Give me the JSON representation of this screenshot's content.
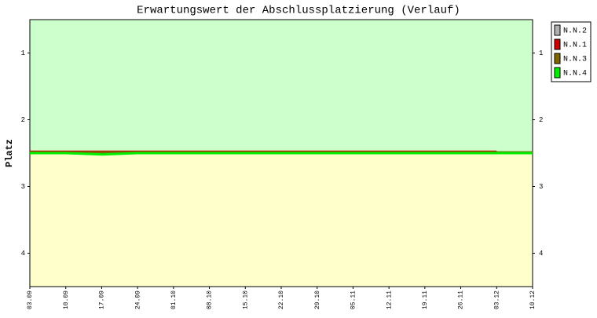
{
  "chart_data": {
    "type": "line",
    "title": "Erwartungswert der Abschlussplatzierung (Verlauf)",
    "y_label": "Platz",
    "categories": [
      "03.09",
      "10.09",
      "17.09",
      "24.09",
      "01.10",
      "08.10",
      "15.10",
      "22.10",
      "29.10",
      "05.11",
      "12.11",
      "19.11",
      "26.11",
      "03.12",
      "10.12"
    ],
    "series": [
      {
        "name": "N.N.2",
        "color": "#b0b0b0",
        "values": [
          2.49,
          2.49,
          2.49,
          2.49,
          2.49,
          2.49,
          2.49,
          2.49,
          2.49,
          2.49,
          2.49,
          2.49,
          2.49,
          2.49,
          2.49
        ]
      },
      {
        "name": "N.N.1",
        "color": "#cc0000",
        "values": [
          2.48,
          2.48,
          2.48,
          2.48,
          2.48,
          2.48,
          2.48,
          2.48,
          2.48,
          2.48,
          2.48,
          2.48,
          2.48,
          2.48,
          null
        ]
      },
      {
        "name": "N.N.3",
        "color": "#806600",
        "values": [
          2.49,
          2.49,
          2.49,
          2.49,
          2.49,
          2.49,
          2.49,
          2.49,
          2.49,
          2.49,
          2.49,
          2.49,
          2.49,
          2.49,
          2.49
        ]
      },
      {
        "name": "N.N.4",
        "color": "#00ee00",
        "values": [
          2.5,
          2.5,
          2.52,
          2.5,
          2.5,
          2.5,
          2.5,
          2.5,
          2.5,
          2.5,
          2.5,
          2.5,
          2.5,
          2.5,
          2.5
        ]
      }
    ],
    "ylim": [
      0.5,
      4.5
    ],
    "inverted": true,
    "yticks": [
      1,
      2,
      3,
      4
    ],
    "zones": [
      {
        "from": 0.5,
        "to": 2.5,
        "color": "#ccffcc"
      },
      {
        "from": 2.5,
        "to": 4.5,
        "color": "#ffffcc"
      }
    ],
    "legend": "top-right"
  }
}
